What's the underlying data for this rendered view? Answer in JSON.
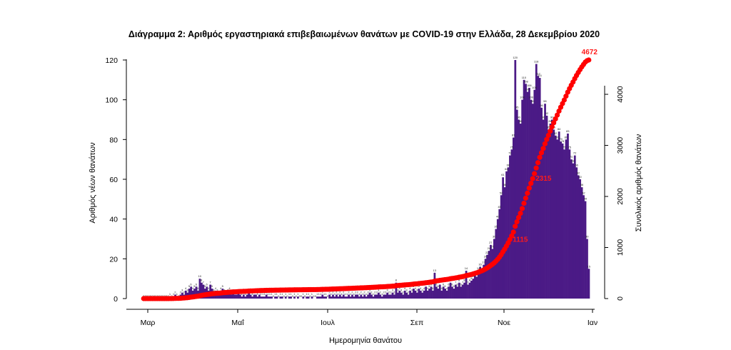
{
  "chart_data": {
    "type": "bar",
    "title": "Διάγραμμα 2: Αριθμός εργαστηριακά επιβεβαιωμένων θανάτων με COVID-19 στην Ελλάδα, 28 Δεκεμβρίου 2020",
    "xlabel": "Ημερομηνία θανάτου",
    "ylabel": "Αριθμός νέων θανάτων",
    "y2label": "Συνολικός αριθμός θανάτων",
    "x_ticks": [
      "Μαρ",
      "Μαΐ",
      "Ιουλ",
      "Σεπ",
      "Νοε",
      "Ιαν"
    ],
    "y_ticks": [
      "0",
      "20",
      "40",
      "60",
      "80",
      "100",
      "120"
    ],
    "y2_ticks": [
      "0",
      "1000",
      "2000",
      "3000",
      "4000"
    ],
    "ylim": [
      0,
      120
    ],
    "y2lim": [
      0,
      4672
    ],
    "bar_color": "#4b1a86",
    "line_color": "#ff0000",
    "series": [
      {
        "name": "Αριθμός νέων θανάτων",
        "kind": "bar",
        "daily": [
          0,
          0,
          0,
          0,
          0,
          0,
          0,
          0,
          0,
          0,
          0,
          0,
          0,
          0,
          0,
          1,
          0,
          1,
          2,
          1,
          0,
          2,
          3,
          2,
          4,
          3,
          5,
          6,
          4,
          5,
          6,
          4,
          10,
          8,
          7,
          5,
          6,
          4,
          7,
          5,
          3,
          4,
          3,
          2,
          4,
          5,
          3,
          2,
          3,
          4,
          2,
          3,
          2,
          2,
          3,
          2,
          1,
          2,
          1,
          2,
          3,
          2,
          1,
          2,
          2,
          1,
          2,
          1,
          1,
          1,
          2,
          1,
          1,
          1,
          0,
          1,
          1,
          0,
          1,
          1,
          0,
          1,
          0,
          1,
          1,
          0,
          1,
          0,
          1,
          0,
          0,
          1,
          0,
          1,
          1,
          0,
          1,
          0,
          0,
          1,
          1,
          1,
          2,
          1,
          1,
          0,
          2,
          1,
          2,
          1,
          2,
          1,
          2,
          1,
          2,
          1,
          1,
          2,
          1,
          2,
          1,
          2,
          2,
          1,
          2,
          1,
          2,
          1,
          2,
          3,
          2,
          1,
          2,
          2,
          3,
          2,
          1,
          2,
          2,
          3,
          2,
          2,
          3,
          2,
          8,
          3,
          4,
          3,
          2,
          4,
          3,
          2,
          4,
          3,
          5,
          4,
          3,
          5,
          4,
          3,
          4,
          6,
          4,
          5,
          6,
          4,
          13,
          6,
          5,
          7,
          4,
          6,
          5,
          4,
          6,
          8,
          6,
          5,
          7,
          6,
          8,
          6,
          7,
          8,
          14,
          7,
          8,
          9,
          10,
          12,
          11,
          14,
          16,
          13,
          17,
          20,
          22,
          24,
          27,
          25,
          30,
          35,
          40,
          45,
          52,
          61,
          56,
          64,
          66,
          72,
          75,
          81,
          120,
          95,
          90,
          88,
          100,
          110,
          108,
          104,
          106,
          100,
          98,
          105,
          118,
          112,
          111,
          96,
          90,
          98,
          92,
          85,
          88,
          90,
          85,
          82,
          80,
          84,
          79,
          78,
          75,
          80,
          83,
          75,
          70,
          68,
          72,
          66,
          62,
          60,
          56,
          52,
          49,
          30,
          15
        ],
        "peak_labels": {
          "120": 120,
          "118": 118,
          "110": 110,
          "111": 111,
          "98": 98,
          "83": 83
        }
      },
      {
        "name": "Συνολικός αριθμός θανάτων",
        "kind": "line",
        "axis": "right",
        "milestones": [
          "1115",
          "2315",
          "4672"
        ]
      }
    ]
  }
}
